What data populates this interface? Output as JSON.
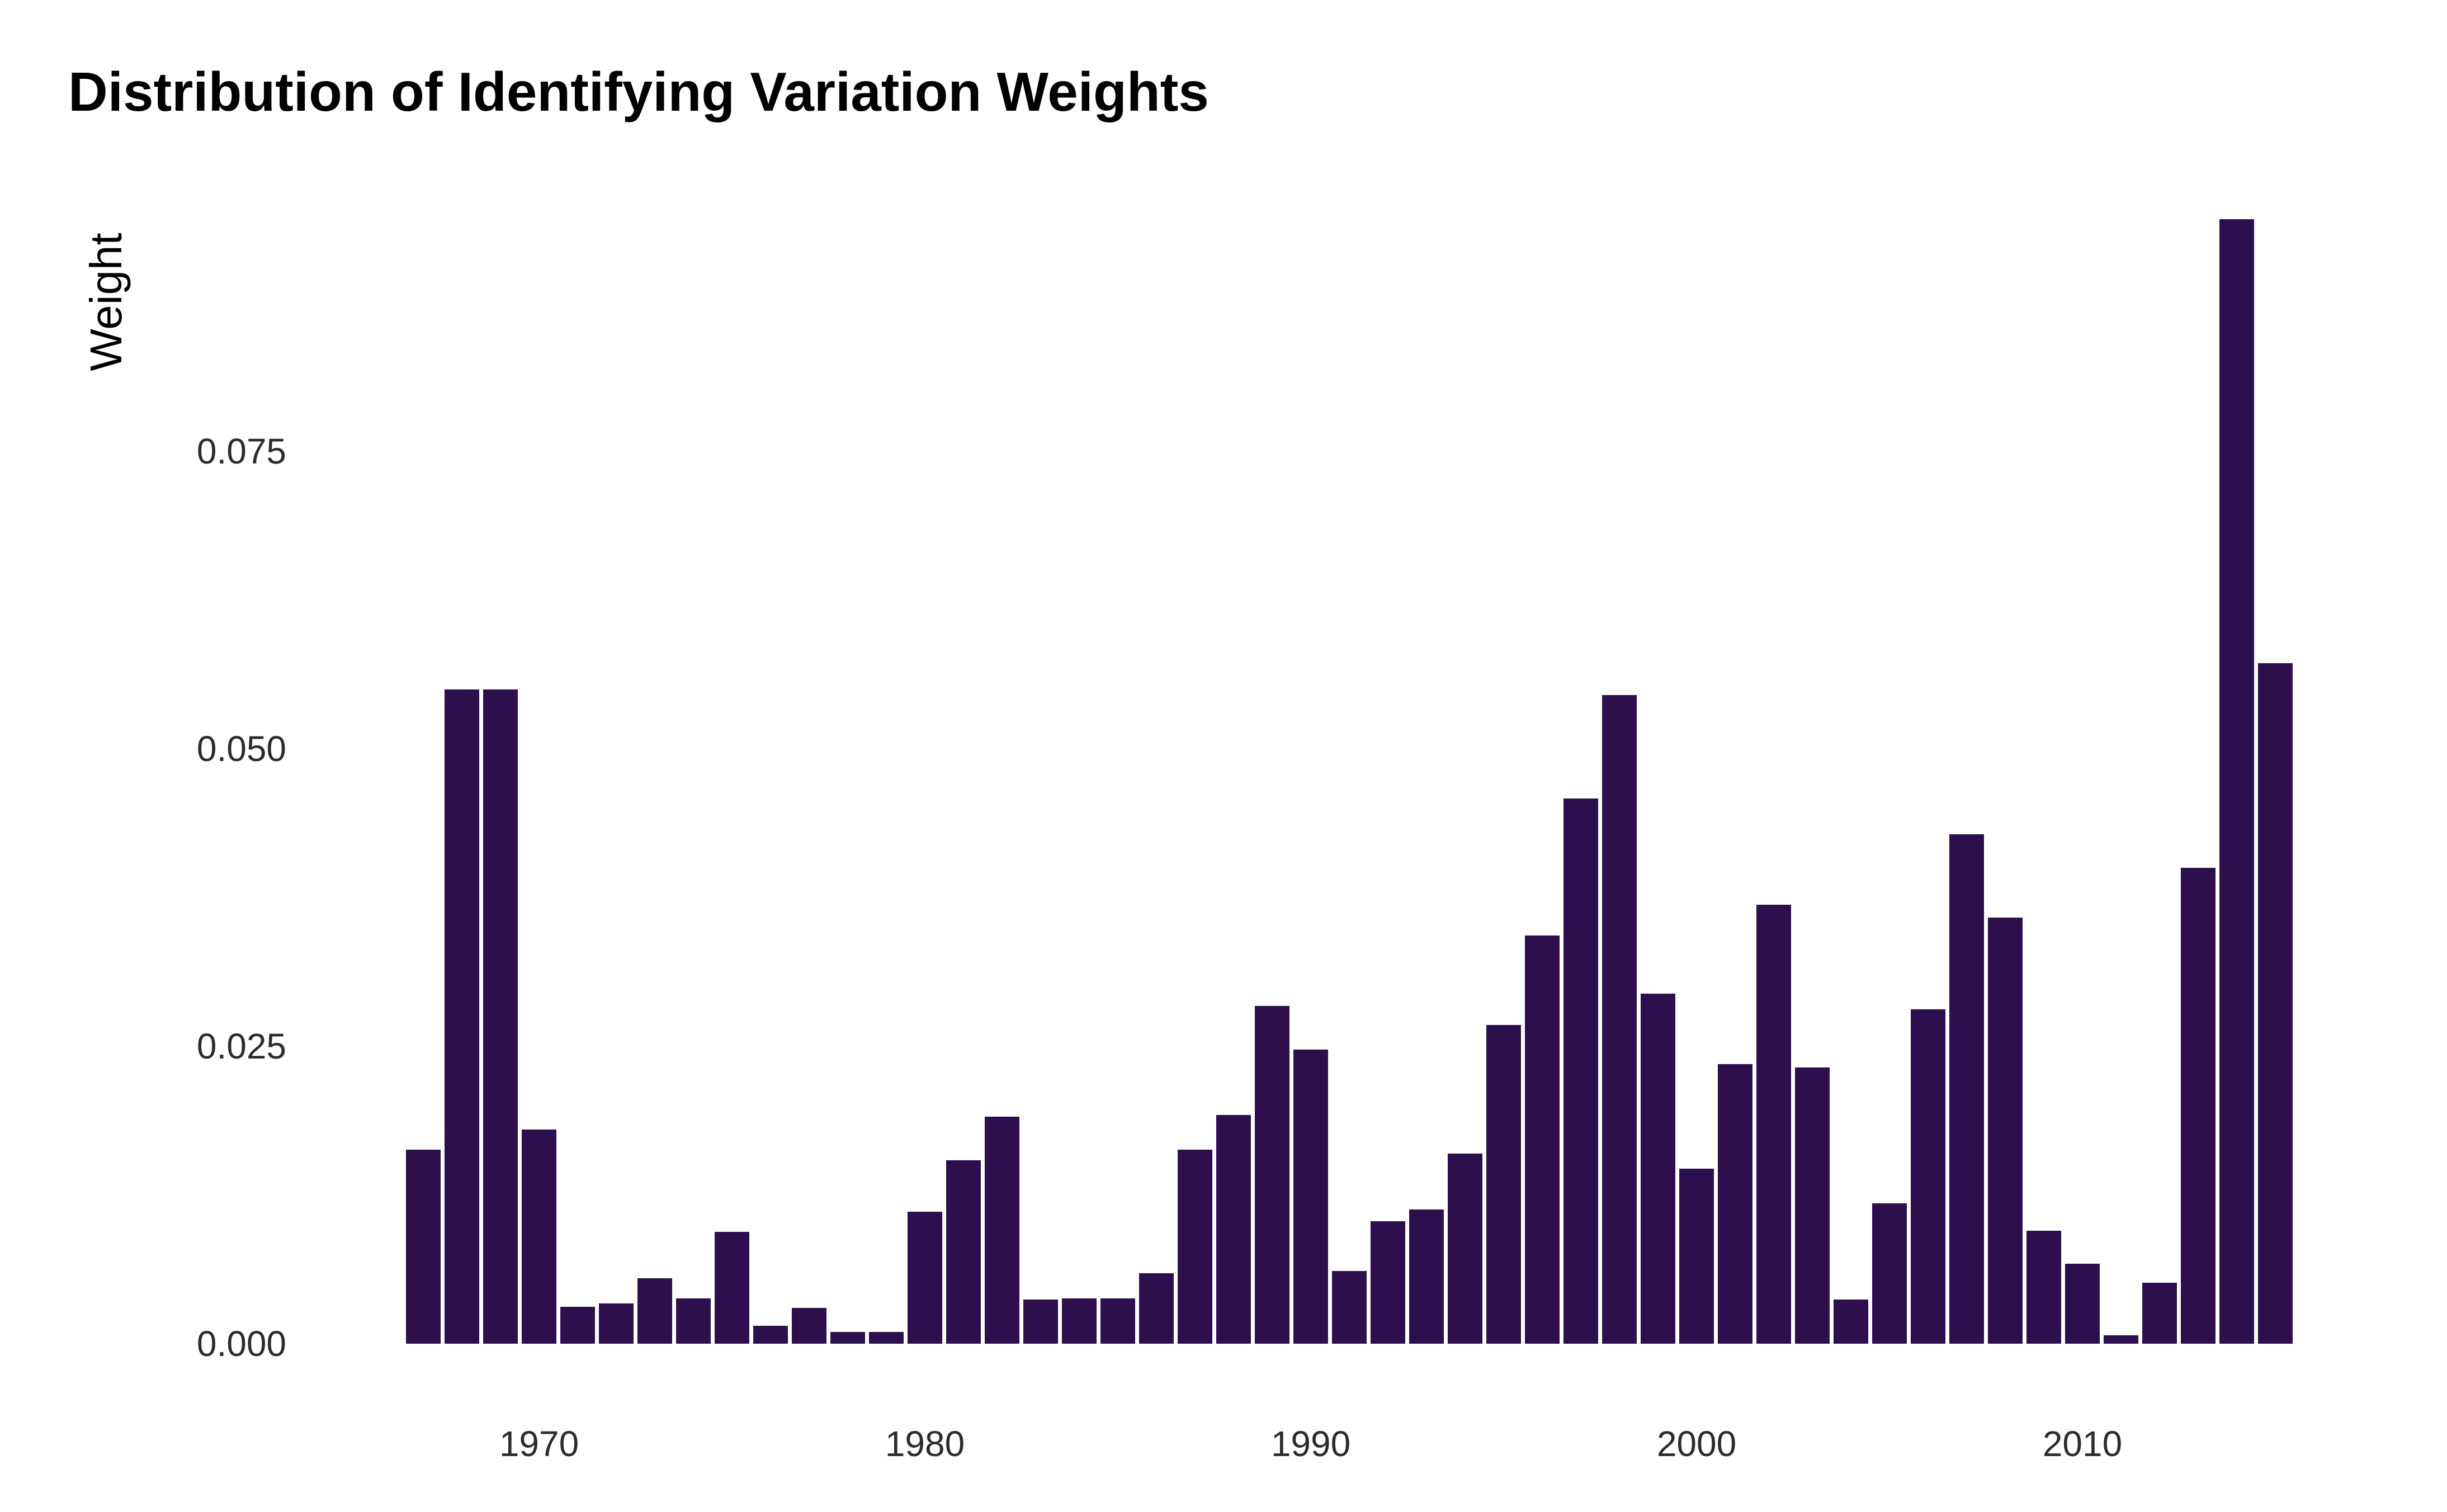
{
  "title": "Distribution of Identifying Variation Weights",
  "chart_data": {
    "type": "bar",
    "title": "Distribution of Identifying Variation Weights",
    "xlabel": "",
    "ylabel": "Weight",
    "legend_position": "none",
    "grid": false,
    "background_color": "#ffffff",
    "bar_color": "#2e0f4d",
    "ylim": [
      0,
      0.0955
    ],
    "y_tick_values": [
      0.0,
      0.025,
      0.05,
      0.075
    ],
    "y_tick_labels": [
      "0.000",
      "0.025",
      "0.050",
      "0.075"
    ],
    "x_tick_values": [
      1970,
      1980,
      1990,
      2000,
      2010
    ],
    "x_tick_labels": [
      "1970",
      "1980",
      "1990",
      "2000",
      "2010"
    ],
    "x": [
      1967,
      1968,
      1969,
      1970,
      1971,
      1972,
      1973,
      1974,
      1975,
      1976,
      1977,
      1978,
      1979,
      1980,
      1981,
      1982,
      1983,
      1984,
      1985,
      1986,
      1987,
      1988,
      1989,
      1990,
      1991,
      1992,
      1993,
      1994,
      1995,
      1996,
      1997,
      1998,
      1999,
      2000,
      2001,
      2002,
      2003,
      2004,
      2005,
      2006,
      2007,
      2008,
      2009,
      2010,
      2011,
      2012,
      2013,
      2014,
      2015
    ],
    "values": [
      0.0163,
      0.055,
      0.055,
      0.018,
      0.0031,
      0.0034,
      0.0055,
      0.0038,
      0.0094,
      0.0015,
      0.003,
      0.001,
      0.001,
      0.0111,
      0.0154,
      0.0191,
      0.0037,
      0.0038,
      0.0038,
      0.0059,
      0.0163,
      0.0192,
      0.0284,
      0.0247,
      0.0061,
      0.0103,
      0.0113,
      0.016,
      0.0268,
      0.0343,
      0.0458,
      0.0545,
      0.0294,
      0.0147,
      0.0235,
      0.0369,
      0.0232,
      0.0037,
      0.0118,
      0.0281,
      0.0428,
      0.0358,
      0.0095,
      0.0067,
      0.0007,
      0.0051,
      0.04,
      0.0945,
      0.0572
    ]
  }
}
